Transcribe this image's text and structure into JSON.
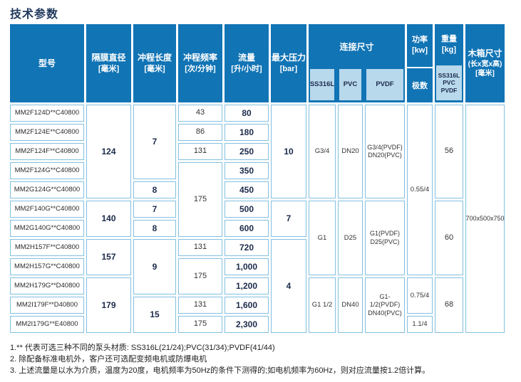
{
  "title": "技术参数",
  "header": {
    "model": "型号",
    "diaphragm": [
      "隔膜直径",
      "[毫米]"
    ],
    "stroke": [
      "冲程长度",
      "[毫米]"
    ],
    "frequency": [
      "冲程频率",
      "[次/分钟]"
    ],
    "flow": [
      "流量",
      "[升/小时]"
    ],
    "pressure": [
      "最大压力",
      "[bar]"
    ],
    "connection": "连接尺寸",
    "conn_materials": [
      "SS316L",
      "PVC",
      "PVDF"
    ],
    "power": [
      "功率",
      "[kw]"
    ],
    "poles": "极数",
    "weight": [
      "重量",
      "[kg]"
    ],
    "weight_materials": [
      "SS316L",
      "PVC",
      "PVDF"
    ],
    "box": [
      "木箱尺寸",
      "(长x宽x高)",
      "[毫米]"
    ]
  },
  "rows": {
    "models": [
      "MM2F124D**C40800",
      "MM2F124E**C40800",
      "MM2F124F**C40800",
      "MM2F124G**C40800",
      "MM2G124G**C40800",
      "MM2F140G**C40800",
      "MM2G140G**C40800",
      "MM2H157F**C40800",
      "MM2H157G**C40800",
      "MM2H179G**D40800",
      "MM2I179F**D40800",
      "MM2I179G**E40800"
    ],
    "diameters": [
      "124",
      "140",
      "157",
      "179"
    ],
    "strokes": [
      "7",
      "8",
      "7",
      "8",
      "9",
      "15"
    ],
    "frequencies": [
      "43",
      "86",
      "131",
      "175",
      "131",
      "175",
      "131",
      "175"
    ],
    "flows": [
      "80",
      "180",
      "250",
      "350",
      "450",
      "500",
      "600",
      "720",
      "1,000",
      "1,200",
      "1,600",
      "2,300"
    ],
    "pressures": [
      "10",
      "7",
      "4"
    ],
    "conn_ss316l": [
      "G3/4",
      "G1",
      "G1 1/2"
    ],
    "conn_pvc": [
      "DN20",
      "D25",
      "DN40"
    ],
    "conn_pvdf": [
      [
        "G3/4(PVDF)",
        "DN20(PVC)"
      ],
      [
        "G1(PVDF)",
        "D25(PVC)"
      ],
      [
        "G1-1/2(PVDF)",
        "DN40(PVC)"
      ]
    ],
    "powers": [
      "0.55/4",
      "0.75/4",
      "1.1/4"
    ],
    "weights": [
      "56",
      "60",
      "68"
    ],
    "box_size": "700x500x750"
  },
  "notes": [
    "1.** 代表可选三种不同的泵头材质: SS316L(21/24);PVC(31/34);PVDF(41/44)",
    "2. 除配备标准电机外，客户还可选配变频电机或防爆电机",
    "3. 上述流量是以水为介质，温度为20度，电机频率为50Hz的条件下测得的;如电机频率为60Hz，则对应流量按1.2倍计算。"
  ],
  "colors": {
    "header_blue": "#1174b5",
    "light_blue": "#b8d8ec",
    "border_blue": "#82c0e0"
  }
}
